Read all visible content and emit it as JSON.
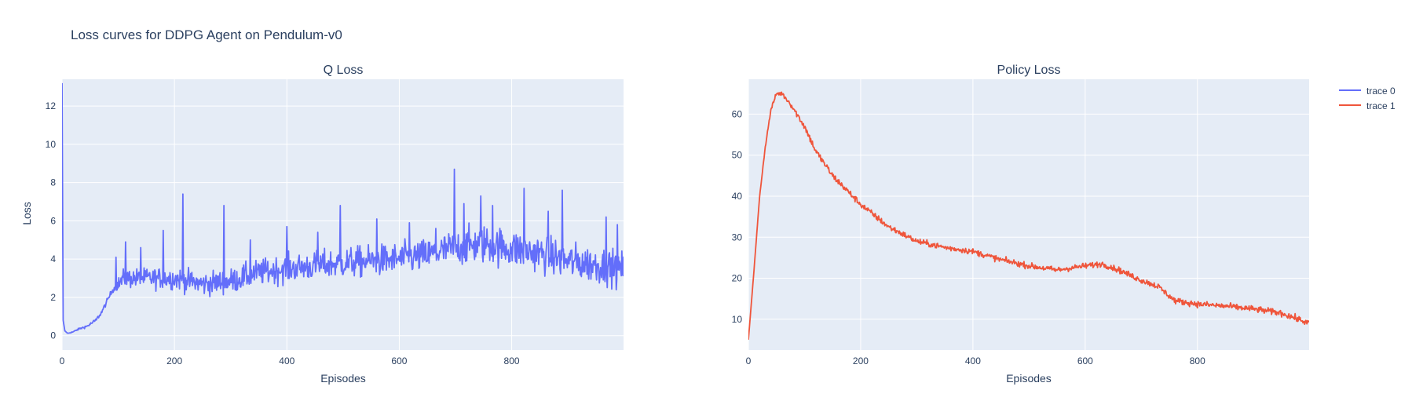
{
  "figure": {
    "title": "Loss curves for DDPG Agent on Pendulum-v0",
    "background": "#ffffff",
    "plot_background": "#e5ecf6",
    "grid_color": "#ffffff",
    "text_color": "#2a3f5f"
  },
  "legend": {
    "placement": "top-right",
    "items": [
      {
        "label": "trace 0",
        "color": "#636efa"
      },
      {
        "label": "trace 1",
        "color": "#ef553b"
      }
    ]
  },
  "chart_data": [
    {
      "type": "line",
      "subplot_title": "Q Loss",
      "xlabel": "Episodes",
      "ylabel": "Loss",
      "xlim": [
        0,
        999
      ],
      "ylim": [
        -0.75,
        13.4
      ],
      "xticks": [
        0,
        200,
        400,
        600,
        800
      ],
      "yticks": [
        0,
        2,
        4,
        6,
        8,
        10,
        12
      ],
      "grid": true,
      "series": [
        {
          "name": "trace 0",
          "color": "#636efa",
          "anchors": [
            [
              0,
              13.2
            ],
            [
              2,
              0.8
            ],
            [
              5,
              0.25
            ],
            [
              10,
              0.12
            ],
            [
              20,
              0.2
            ],
            [
              30,
              0.35
            ],
            [
              45,
              0.5
            ],
            [
              60,
              0.8
            ],
            [
              70,
              1.2
            ],
            [
              80,
              1.8
            ],
            [
              90,
              2.4
            ],
            [
              100,
              2.7
            ],
            [
              110,
              3.0
            ],
            [
              150,
              3.0
            ],
            [
              200,
              3.0
            ],
            [
              250,
              2.7
            ],
            [
              300,
              2.85
            ],
            [
              350,
              3.3
            ],
            [
              400,
              3.5
            ],
            [
              450,
              3.65
            ],
            [
              500,
              3.8
            ],
            [
              550,
              3.9
            ],
            [
              600,
              4.0
            ],
            [
              650,
              4.2
            ],
            [
              700,
              4.6
            ],
            [
              750,
              4.8
            ],
            [
              800,
              4.55
            ],
            [
              850,
              4.3
            ],
            [
              900,
              3.9
            ],
            [
              950,
              3.7
            ],
            [
              999,
              3.5
            ]
          ],
          "noise": [
            [
              0,
              0.0
            ],
            [
              90,
              0.1
            ],
            [
              110,
              0.35
            ],
            [
              300,
              0.45
            ],
            [
              500,
              0.55
            ],
            [
              650,
              0.6
            ],
            [
              750,
              0.7
            ],
            [
              999,
              0.65
            ]
          ],
          "spikes": [
            [
              96,
              4.1
            ],
            [
              113,
              4.9
            ],
            [
              140,
              4.6
            ],
            [
              180,
              5.5
            ],
            [
              215,
              7.4
            ],
            [
              288,
              6.8
            ],
            [
              335,
              5.0
            ],
            [
              400,
              5.7
            ],
            [
              455,
              5.4
            ],
            [
              495,
              6.8
            ],
            [
              560,
              6.1
            ],
            [
              618,
              5.9
            ],
            [
              665,
              5.6
            ],
            [
              698,
              8.7
            ],
            [
              715,
              6.9
            ],
            [
              745,
              7.3
            ],
            [
              766,
              6.8
            ],
            [
              822,
              7.7
            ],
            [
              865,
              6.5
            ],
            [
              890,
              7.6
            ],
            [
              968,
              6.2
            ],
            [
              988,
              5.8
            ]
          ]
        }
      ]
    },
    {
      "type": "line",
      "subplot_title": "Policy Loss",
      "xlabel": "Episodes",
      "ylabel": "",
      "xlim": [
        0,
        999
      ],
      "ylim": [
        2.5,
        68.5
      ],
      "xticks": [
        0,
        200,
        400,
        600,
        800
      ],
      "yticks": [
        10,
        20,
        30,
        40,
        50,
        60
      ],
      "grid": true,
      "series": [
        {
          "name": "trace 1",
          "color": "#ef553b",
          "anchors": [
            [
              0,
              5.0
            ],
            [
              10,
              22.0
            ],
            [
              20,
              40.0
            ],
            [
              30,
              52.0
            ],
            [
              40,
              61.0
            ],
            [
              50,
              65.0
            ],
            [
              60,
              65.0
            ],
            [
              75,
              62.5
            ],
            [
              100,
              57.0
            ],
            [
              120,
              51.0
            ],
            [
              150,
              45.0
            ],
            [
              175,
              41.5
            ],
            [
              200,
              38.0
            ],
            [
              250,
              32.5
            ],
            [
              300,
              29.0
            ],
            [
              350,
              27.5
            ],
            [
              400,
              26.5
            ],
            [
              450,
              24.5
            ],
            [
              500,
              23.0
            ],
            [
              550,
              22.0
            ],
            [
              600,
              23.0
            ],
            [
              630,
              23.5
            ],
            [
              660,
              22.0
            ],
            [
              700,
              19.5
            ],
            [
              730,
              18.0
            ],
            [
              760,
              14.5
            ],
            [
              800,
              13.7
            ],
            [
              850,
              13.2
            ],
            [
              900,
              12.5
            ],
            [
              950,
              11.5
            ],
            [
              999,
              9.0
            ]
          ],
          "noise": [
            [
              0,
              0.0
            ],
            [
              40,
              0.3
            ],
            [
              100,
              0.6
            ],
            [
              300,
              0.5
            ],
            [
              600,
              0.5
            ],
            [
              999,
              0.55
            ]
          ],
          "spikes": []
        }
      ]
    }
  ]
}
